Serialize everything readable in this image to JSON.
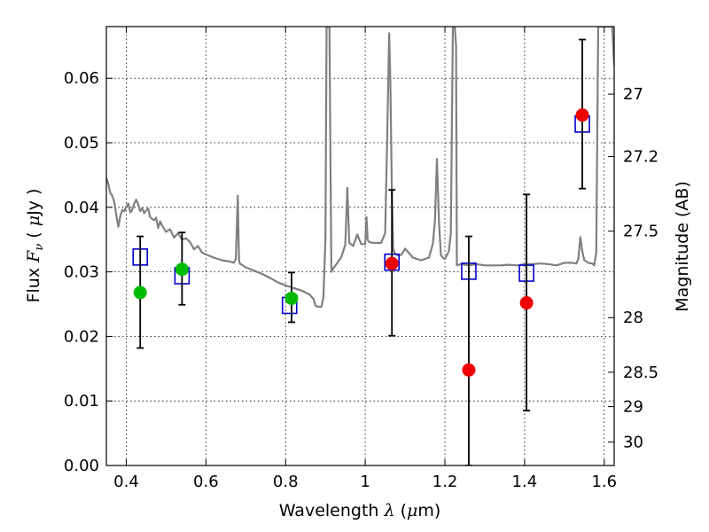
{
  "chart_data": {
    "type": "scatter",
    "xlabel": {
      "pre": "Wavelength  ",
      "sym": "λ",
      "post": " (",
      "mu": "μ",
      "unit": "m)"
    },
    "ylabel": {
      "pre": "Flux  ",
      "sym": "F",
      "sub": "ν",
      "post": "  ( ",
      "mu": "μ",
      "unit": "Jy )"
    },
    "y2label": "Magnitude (AB)",
    "xlim": [
      0.35,
      1.625
    ],
    "ylim": [
      0.0,
      0.068
    ],
    "xticks": [
      0.4,
      0.6,
      0.8,
      1.0,
      1.2,
      1.4,
      1.6
    ],
    "xtick_labels": [
      "0.4",
      "0.6",
      "0.8",
      "1",
      "1.2",
      "1.4",
      "1.6"
    ],
    "yticks": [
      0.0,
      0.01,
      0.02,
      0.03,
      0.04,
      0.05,
      0.06
    ],
    "ytick_labels": [
      "0.00",
      "0.01",
      "0.02",
      "0.03",
      "0.04",
      "0.05",
      "0.06"
    ],
    "y2ticks": [
      {
        "label": "27",
        "mag": 27.0
      },
      {
        "label": "27.2",
        "mag": 27.2
      },
      {
        "label": "27.5",
        "mag": 27.5
      },
      {
        "label": "28",
        "mag": 28.0
      },
      {
        "label": "28.5",
        "mag": 28.5
      },
      {
        "label": "29",
        "mag": 29.0
      },
      {
        "label": "30",
        "mag": 30.0
      }
    ],
    "grid": true,
    "colors": {
      "model": "#808080",
      "green": "#00bb00",
      "red": "#ee0000",
      "box": "#0000cc",
      "errorbar": "#000000"
    },
    "model_spectrum": {
      "x": [
        0.35,
        0.355,
        0.36,
        0.365,
        0.37,
        0.375,
        0.38,
        0.385,
        0.39,
        0.395,
        0.4,
        0.405,
        0.41,
        0.415,
        0.42,
        0.425,
        0.43,
        0.435,
        0.44,
        0.445,
        0.45,
        0.455,
        0.46,
        0.465,
        0.47,
        0.475,
        0.48,
        0.485,
        0.49,
        0.5,
        0.51,
        0.52,
        0.53,
        0.54,
        0.55,
        0.56,
        0.57,
        0.58,
        0.59,
        0.6,
        0.62,
        0.64,
        0.66,
        0.67,
        0.675,
        0.68,
        0.683,
        0.685,
        0.69,
        0.7,
        0.72,
        0.74,
        0.76,
        0.78,
        0.8,
        0.82,
        0.84,
        0.86,
        0.87,
        0.875,
        0.88,
        0.89,
        0.895,
        0.9,
        0.903,
        0.906,
        0.91,
        0.915,
        0.92,
        0.93,
        0.94,
        0.95,
        0.955,
        0.96,
        0.97,
        0.98,
        0.99,
        1.0,
        1.003,
        1.006,
        1.01,
        1.02,
        1.03,
        1.04,
        1.05,
        1.055,
        1.06,
        1.063,
        1.067,
        1.07,
        1.075,
        1.08,
        1.09,
        1.1,
        1.12,
        1.14,
        1.16,
        1.17,
        1.175,
        1.18,
        1.185,
        1.19,
        1.195,
        1.2,
        1.21,
        1.215,
        1.22,
        1.222,
        1.225,
        1.228,
        1.23,
        1.24,
        1.26,
        1.28,
        1.3,
        1.32,
        1.34,
        1.36,
        1.38,
        1.4,
        1.42,
        1.44,
        1.46,
        1.48,
        1.5,
        1.52,
        1.53,
        1.535,
        1.54,
        1.545,
        1.55,
        1.56,
        1.57,
        1.575,
        1.58,
        1.585,
        1.59,
        1.6,
        1.61,
        1.615,
        1.62,
        1.625
      ],
      "y": [
        0.0446,
        0.0436,
        0.0422,
        0.0418,
        0.0408,
        0.0388,
        0.037,
        0.0386,
        0.0396,
        0.0394,
        0.0401,
        0.0406,
        0.0392,
        0.0396,
        0.0406,
        0.0412,
        0.0404,
        0.0394,
        0.0399,
        0.0391,
        0.0395,
        0.0398,
        0.0385,
        0.0382,
        0.038,
        0.0384,
        0.0368,
        0.0378,
        0.0372,
        0.0362,
        0.0366,
        0.0353,
        0.036,
        0.035,
        0.0352,
        0.0346,
        0.0335,
        0.034,
        0.033,
        0.0327,
        0.0322,
        0.0318,
        0.0316,
        0.0314,
        0.032,
        0.0418,
        0.0318,
        0.0313,
        0.0311,
        0.0307,
        0.0302,
        0.0297,
        0.0291,
        0.0284,
        0.0279,
        0.0275,
        0.0271,
        0.0265,
        0.0258,
        0.0248,
        0.0246,
        0.0246,
        0.026,
        0.035,
        0.068,
        0.068,
        0.068,
        0.03,
        0.0306,
        0.0314,
        0.0323,
        0.0342,
        0.043,
        0.0345,
        0.034,
        0.0358,
        0.0343,
        0.0343,
        0.0385,
        0.035,
        0.0346,
        0.0345,
        0.0345,
        0.0345,
        0.036,
        0.05,
        0.067,
        0.06,
        0.042,
        0.0336,
        0.0328,
        0.0326,
        0.0326,
        0.0336,
        0.0322,
        0.0318,
        0.0322,
        0.0344,
        0.038,
        0.0475,
        0.0378,
        0.0326,
        0.0322,
        0.032,
        0.0332,
        0.036,
        0.068,
        0.068,
        0.068,
        0.065,
        0.031,
        0.0312,
        0.031,
        0.0312,
        0.031,
        0.031,
        0.031,
        0.0311,
        0.031,
        0.0312,
        0.0312,
        0.0313,
        0.0312,
        0.031,
        0.0314,
        0.0314,
        0.0313,
        0.032,
        0.0354,
        0.0332,
        0.0318,
        0.0314,
        0.0313,
        0.031,
        0.033,
        0.068,
        0.068,
        0.068,
        0.068,
        0.068,
        0.068,
        0.062
      ]
    },
    "model_photometry": {
      "x": [
        0.435,
        0.54,
        0.81,
        1.067,
        1.26,
        1.405,
        1.545
      ],
      "y": [
        0.0323,
        0.0294,
        0.0248,
        0.0315,
        0.0301,
        0.0298,
        0.0529
      ]
    },
    "observed_green": {
      "x": [
        0.435,
        0.54,
        0.815
      ],
      "y": [
        0.0268,
        0.0304,
        0.0259
      ],
      "err_low": [
        0.0086,
        0.0055,
        0.0037
      ],
      "err_high": [
        0.0087,
        0.0057,
        0.004
      ]
    },
    "observed_red": {
      "x": [
        1.067,
        1.26,
        1.405,
        1.545
      ],
      "y": [
        0.0313,
        0.0148,
        0.0252,
        0.0543
      ],
      "err_low": [
        0.0112,
        0.0148,
        0.0167,
        0.0114
      ],
      "err_high": [
        0.0114,
        0.0207,
        0.0168,
        0.0117
      ]
    }
  }
}
